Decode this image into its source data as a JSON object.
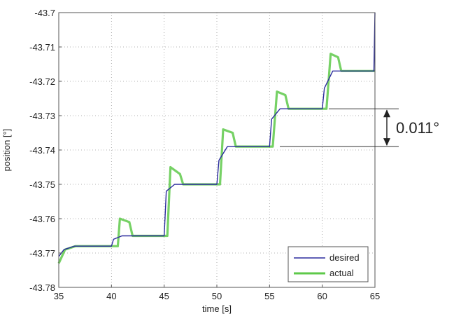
{
  "chart_data": {
    "type": "line",
    "xlabel": "time [s]",
    "ylabel": "position [°]",
    "xlim": [
      35,
      65
    ],
    "ylim": [
      -43.78,
      -43.7
    ],
    "x_ticks": [
      35,
      40,
      45,
      50,
      55,
      60,
      65
    ],
    "x_tick_labels": [
      "35",
      "40",
      "45",
      "50",
      "55",
      "60",
      "65"
    ],
    "y_ticks": [
      -43.7,
      -43.71,
      -43.72,
      -43.73,
      -43.74,
      -43.75,
      -43.76,
      -43.77,
      -43.78
    ],
    "y_tick_labels": [
      "-43.7",
      "-43.71",
      "-43.72",
      "-43.73",
      "-43.74",
      "-43.75",
      "-43.76",
      "-43.77",
      "-43.78"
    ],
    "grid": true,
    "legend_position": "bottom-right",
    "series": [
      {
        "name": "desired",
        "color": "#2b2b9e",
        "x": [
          35,
          35.5,
          36.5,
          40,
          40.2,
          41,
          45,
          45.2,
          46,
          50,
          50.2,
          51,
          55,
          55.2,
          56,
          60,
          60.2,
          61,
          64.9,
          65
        ],
        "y": [
          -43.771,
          -43.769,
          -43.768,
          -43.768,
          -43.766,
          -43.765,
          -43.765,
          -43.752,
          -43.75,
          -43.75,
          -43.743,
          -43.739,
          -43.739,
          -43.731,
          -43.728,
          -43.728,
          -43.722,
          -43.717,
          -43.717,
          -43.7
        ]
      },
      {
        "name": "actual",
        "color": "#5ec94a",
        "x": [
          35,
          35.6,
          36.6,
          40.6,
          40.8,
          41.7,
          42,
          45.3,
          45.6,
          46.5,
          46.8,
          50.3,
          50.6,
          51.5,
          51.8,
          55.3,
          55.7,
          56.5,
          56.8,
          60.4,
          60.8,
          61.5,
          61.8,
          65
        ],
        "y": [
          -43.773,
          -43.769,
          -43.768,
          -43.768,
          -43.76,
          -43.761,
          -43.765,
          -43.765,
          -43.745,
          -43.747,
          -43.75,
          -43.75,
          -43.734,
          -43.735,
          -43.739,
          -43.739,
          -43.723,
          -43.724,
          -43.728,
          -43.728,
          -43.712,
          -43.713,
          -43.717,
          -43.717
        ]
      }
    ],
    "annotations": [
      {
        "text": "0.011°",
        "from_y": -43.728,
        "to_y": -43.739
      }
    ]
  }
}
